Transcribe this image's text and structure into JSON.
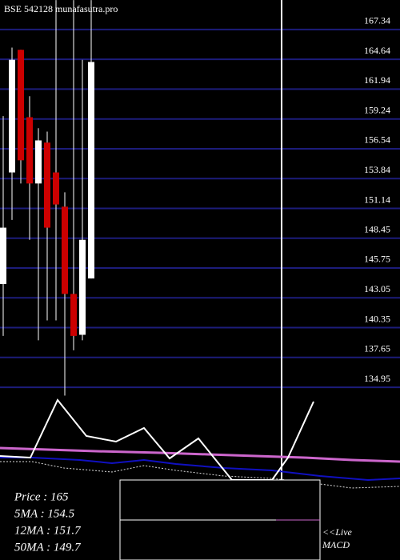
{
  "chart_data": {
    "type": "candlestick",
    "title": "BSE 542128 munafasutra.pro",
    "open": [
      144.3,
      154.4,
      165.5,
      159.4,
      153.4,
      157.1,
      154.4,
      151.3,
      143.4,
      139.7,
      144.8
    ],
    "close": [
      149.4,
      164.6,
      155.5,
      153.4,
      157.3,
      149.4,
      151.5,
      143.4,
      139.6,
      148.3,
      164.4
    ],
    "high": [
      159.5,
      165.7,
      165.5,
      161.3,
      158.4,
      158.1,
      170,
      152.6,
      170,
      164.6,
      170
    ],
    "low": [
      139.6,
      150.1,
      153.4,
      148.3,
      139.2,
      141.0,
      141.0,
      134.2,
      138.3,
      139.2,
      144.8
    ],
    "up_color": "#ffffff",
    "down_color": "#cc0000",
    "ylim": [
      134.16,
      170.01
    ],
    "yticks": [
      167.34,
      164.64,
      161.94,
      159.24,
      156.54,
      153.84,
      151.14,
      148.45,
      145.75,
      143.05,
      140.35,
      137.65,
      134.95
    ],
    "grid": true,
    "grid_color": "#1c1c7a",
    "info": [
      "Price   : 165",
      "5MA   : 154.5",
      "12MA : 151.7",
      "50MA : 149.7"
    ],
    "indicator_note": [
      "<<Live",
      "MACD"
    ]
  }
}
